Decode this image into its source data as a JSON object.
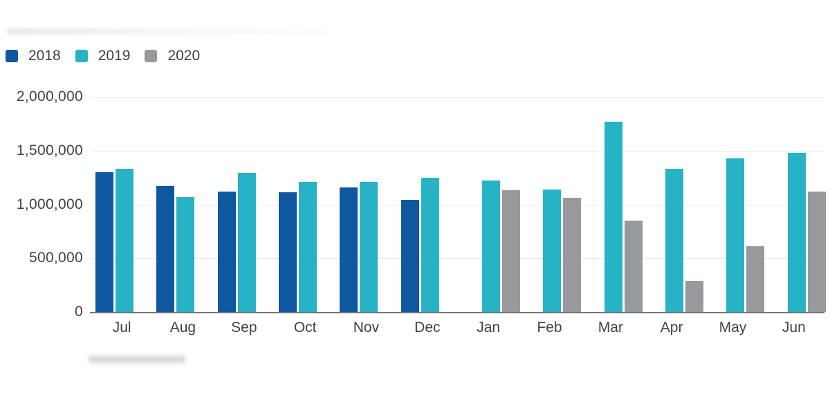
{
  "chart_data": {
    "type": "bar",
    "title": "",
    "xlabel": "",
    "ylabel": "",
    "categories": [
      "Jul",
      "Aug",
      "Sep",
      "Oct",
      "Nov",
      "Dec",
      "Jan",
      "Feb",
      "Mar",
      "Apr",
      "May",
      "Jun"
    ],
    "series": [
      {
        "name": "2018",
        "color": "#0f579e",
        "values": [
          1300000,
          1170000,
          1120000,
          1110000,
          1160000,
          1040000,
          null,
          null,
          null,
          null,
          null,
          null
        ]
      },
      {
        "name": "2019",
        "color": "#27b2c6",
        "values": [
          1330000,
          1070000,
          1290000,
          1210000,
          1210000,
          1250000,
          1220000,
          1140000,
          1770000,
          1330000,
          1430000,
          1480000
        ]
      },
      {
        "name": "2020",
        "color": "#97999c",
        "values": [
          null,
          null,
          null,
          null,
          null,
          null,
          1130000,
          1060000,
          850000,
          290000,
          610000,
          1120000
        ]
      }
    ],
    "y_ticks": [
      {
        "value": 0,
        "label": "0"
      },
      {
        "value": 500000,
        "label": "500,000"
      },
      {
        "value": 1000000,
        "label": "1,000,000"
      },
      {
        "value": 1500000,
        "label": "1,500,000"
      },
      {
        "value": 2000000,
        "label": "2,000,000"
      }
    ],
    "ylim": [
      0,
      2000000
    ],
    "grid": true,
    "legend_position": "top-left"
  }
}
